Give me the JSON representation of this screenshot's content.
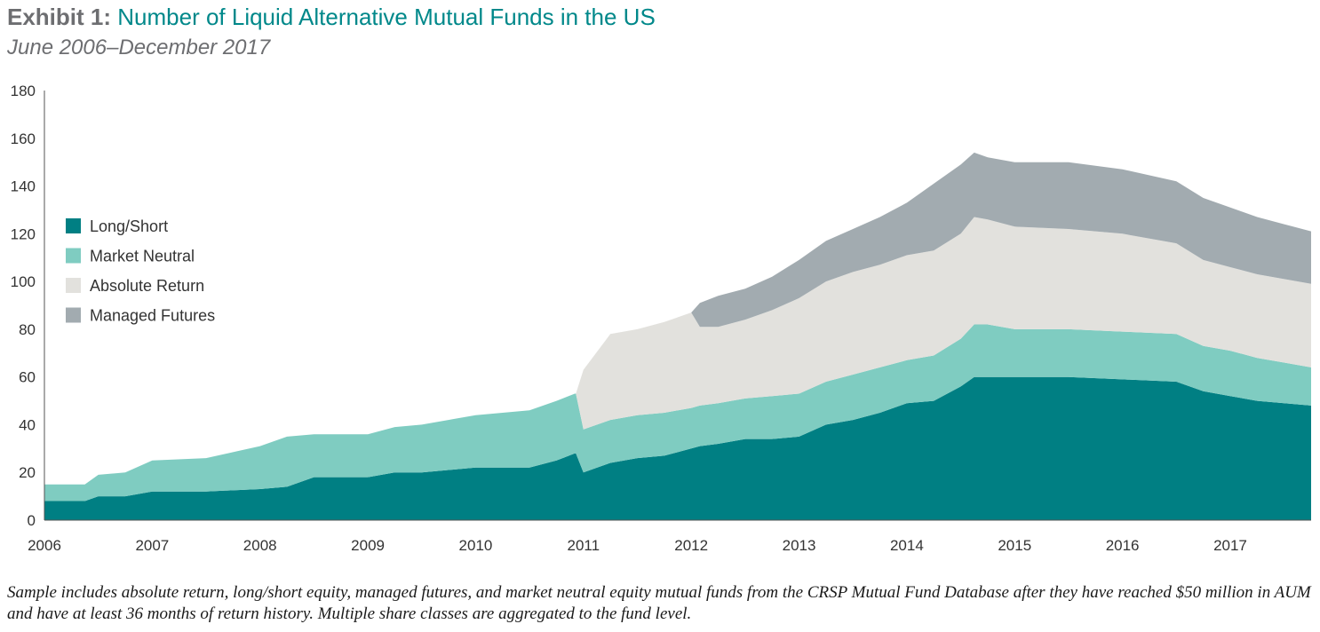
{
  "header": {
    "title_prefix": "Exhibit 1:",
    "title": "Number of Liquid Alternative Mutual Funds in the US",
    "subtitle": "June 2006–December 2017"
  },
  "footnote": "Sample includes absolute return, long/short equity, managed futures, and market neutral equity mutual funds from the CRSP Mutual Fund Database after they have reached $50 million in AUM and have at least 36 months of return history. Multiple share classes are aggregated to the fund level.",
  "chart_data": {
    "type": "area",
    "stacked": true,
    "title": "Number of Liquid Alternative Mutual Funds in the US",
    "xlabel": "",
    "ylabel": "",
    "xlim": [
      2006.0,
      2017.75
    ],
    "ylim": [
      0,
      180
    ],
    "yticks": [
      0,
      20,
      40,
      60,
      80,
      100,
      120,
      140,
      160,
      180
    ],
    "xticks": [
      2006,
      2007,
      2008,
      2009,
      2010,
      2011,
      2012,
      2013,
      2014,
      2015,
      2016,
      2017
    ],
    "legend_position": "left-middle",
    "x": [
      2006.0,
      2006.375,
      2006.5,
      2006.75,
      2007.0,
      2007.5,
      2008.0,
      2008.25,
      2008.5,
      2009.0,
      2009.25,
      2009.5,
      2010.0,
      2010.5,
      2010.75,
      2010.92,
      2010.93,
      2011.0,
      2011.25,
      2011.5,
      2011.75,
      2012.0,
      2012.08,
      2012.25,
      2012.5,
      2012.75,
      2013.0,
      2013.25,
      2013.5,
      2013.75,
      2014.0,
      2014.25,
      2014.5,
      2014.625,
      2014.75,
      2015.0,
      2015.5,
      2016.0,
      2016.5,
      2016.75,
      2017.0,
      2017.25,
      2017.5,
      2017.75
    ],
    "series": [
      {
        "name": "Long/Short",
        "color": "#007f83",
        "values": [
          8,
          8,
          10,
          10,
          12,
          12,
          13,
          14,
          18,
          18,
          20,
          20,
          22,
          22,
          25,
          28,
          28,
          20,
          24,
          26,
          27,
          30,
          31,
          32,
          34,
          34,
          35,
          40,
          42,
          45,
          49,
          50,
          56,
          60,
          60,
          60,
          60,
          59,
          58,
          54,
          52,
          50,
          49,
          48
        ]
      },
      {
        "name": "Market Neutral",
        "color": "#7fccc1",
        "values": [
          7,
          7,
          9,
          10,
          13,
          14,
          18,
          21,
          18,
          18,
          19,
          20,
          22,
          24,
          25,
          25,
          25,
          18,
          18,
          18,
          18,
          17,
          17,
          17,
          17,
          18,
          18,
          18,
          19,
          19,
          18,
          19,
          20,
          22,
          22,
          20,
          20,
          20,
          20,
          19,
          19,
          18,
          17,
          16
        ]
      },
      {
        "name": "Absolute Return",
        "color": "#e2e1dd",
        "values": [
          0,
          0,
          0,
          0,
          0,
          0,
          0,
          0,
          0,
          0,
          0,
          0,
          0,
          0,
          0,
          0,
          0,
          25,
          36,
          36,
          38,
          40,
          33,
          32,
          33,
          36,
          40,
          42,
          43,
          43,
          44,
          44,
          44,
          45,
          44,
          43,
          42,
          41,
          38,
          36,
          35,
          35,
          35,
          35
        ]
      },
      {
        "name": "Managed Futures",
        "color": "#a2abb0",
        "values": [
          0,
          0,
          0,
          0,
          0,
          0,
          0,
          0,
          0,
          0,
          0,
          0,
          0,
          0,
          0,
          0,
          0,
          0,
          0,
          0,
          0,
          0,
          10,
          13,
          13,
          14,
          16,
          17,
          18,
          20,
          22,
          28,
          29,
          27,
          26,
          27,
          28,
          27,
          26,
          26,
          25,
          24,
          23,
          22
        ]
      }
    ]
  }
}
